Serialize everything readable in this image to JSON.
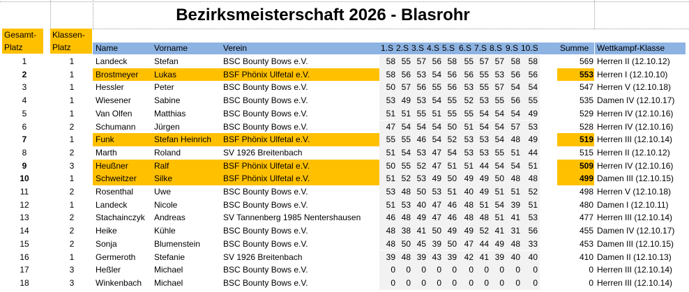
{
  "title": "Bezirksmeisterschaft 2026 - Blasrohr",
  "header": {
    "gesamt": [
      "Gesamt-",
      "Platz"
    ],
    "klassen": [
      "Klassen-",
      "Platz"
    ],
    "name": "Name",
    "vorname": "Vorname",
    "verein": "Verein",
    "shots": [
      "1.S",
      "2.S",
      "3.S",
      "4.S",
      "5.S",
      "6.S",
      "7.S",
      "8.S",
      "9.S",
      "10.S"
    ],
    "summe": "Summe",
    "klasse": "Wettkampf-Klasse"
  },
  "colors": {
    "highlight": "#ffc000",
    "header_blue": "#8db3e2"
  },
  "rows": [
    {
      "platz": "1",
      "kplatz": "1",
      "name": "Landeck",
      "vorname": "Stefan",
      "verein": "BSC Bounty Bows e.V.",
      "s": [
        "58",
        "55",
        "57",
        "56",
        "58",
        "55",
        "57",
        "57",
        "58",
        "58"
      ],
      "summe": "569",
      "klasse": "Herren II (12.10.12)",
      "hl": false
    },
    {
      "platz": "2",
      "kplatz": "1",
      "name": "Brostmeyer",
      "vorname": "Lukas",
      "verein": "BSF Phönix Ulfetal e.V.",
      "s": [
        "58",
        "56",
        "53",
        "54",
        "56",
        "56",
        "55",
        "53",
        "56",
        "56"
      ],
      "summe": "553",
      "klasse": "Herren I (12.10.10)",
      "hl": true
    },
    {
      "platz": "3",
      "kplatz": "1",
      "name": "Hessler",
      "vorname": "Peter",
      "verein": "BSC Bounty Bows e.V.",
      "s": [
        "50",
        "57",
        "56",
        "55",
        "56",
        "53",
        "55",
        "57",
        "54",
        "54"
      ],
      "summe": "547",
      "klasse": "Herren V (12.10.18)",
      "hl": false
    },
    {
      "platz": "4",
      "kplatz": "1",
      "name": "Wiesener",
      "vorname": "Sabine",
      "verein": "BSC Bounty Bows e.V.",
      "s": [
        "53",
        "49",
        "53",
        "54",
        "55",
        "52",
        "53",
        "55",
        "56",
        "55"
      ],
      "summe": "535",
      "klasse": "Damen IV (12.10.17)",
      "hl": false
    },
    {
      "platz": "5",
      "kplatz": "1",
      "name": "Van Olfen",
      "vorname": "Matthias",
      "verein": "BSC Bounty Bows e.V.",
      "s": [
        "51",
        "51",
        "55",
        "51",
        "55",
        "55",
        "54",
        "54",
        "54",
        "49"
      ],
      "summe": "529",
      "klasse": "Herren IV (12.10.16)",
      "hl": false
    },
    {
      "platz": "6",
      "kplatz": "2",
      "name": "Schumann",
      "vorname": "Jürgen",
      "verein": "BSC Bounty Bows e.V.",
      "s": [
        "47",
        "54",
        "54",
        "54",
        "50",
        "51",
        "54",
        "54",
        "57",
        "53"
      ],
      "summe": "528",
      "klasse": "Herren IV (12.10.16)",
      "hl": false
    },
    {
      "platz": "7",
      "kplatz": "1",
      "name": "Funk",
      "vorname": "Stefan Heinrich",
      "verein": "BSF Phönix Ulfetal e.V.",
      "s": [
        "55",
        "55",
        "46",
        "54",
        "52",
        "53",
        "53",
        "54",
        "48",
        "49"
      ],
      "summe": "519",
      "klasse": "Herren III (12.10.14)",
      "hl": true
    },
    {
      "platz": "8",
      "kplatz": "2",
      "name": "Marth",
      "vorname": "Roland",
      "verein": "SV 1926 Breitenbach",
      "s": [
        "51",
        "54",
        "53",
        "47",
        "54",
        "53",
        "53",
        "55",
        "51",
        "44"
      ],
      "summe": "515",
      "klasse": "Herren II (12.10.12)",
      "hl": false
    },
    {
      "platz": "9",
      "kplatz": "3",
      "name": "Heußner",
      "vorname": "Ralf",
      "verein": "BSF Phönix Ulfetal e.V.",
      "s": [
        "50",
        "55",
        "52",
        "47",
        "51",
        "51",
        "44",
        "54",
        "54",
        "51"
      ],
      "summe": "509",
      "klasse": "Herren IV (12.10.16)",
      "hl": true
    },
    {
      "platz": "10",
      "kplatz": "1",
      "name": "Schweitzer",
      "vorname": "Silke",
      "verein": "BSF Phönix Ulfetal e.V.",
      "s": [
        "51",
        "52",
        "53",
        "49",
        "50",
        "49",
        "49",
        "50",
        "48",
        "48"
      ],
      "summe": "499",
      "klasse": "Damen III (12.10.15)",
      "hl": true
    },
    {
      "platz": "11",
      "kplatz": "2",
      "name": "Rosenthal",
      "vorname": "Uwe",
      "verein": "BSC Bounty Bows e.V.",
      "s": [
        "53",
        "48",
        "50",
        "53",
        "51",
        "40",
        "49",
        "51",
        "51",
        "52"
      ],
      "summe": "498",
      "klasse": "Herren V (12.10.18)",
      "hl": false
    },
    {
      "platz": "12",
      "kplatz": "1",
      "name": "Landeck",
      "vorname": "Nicole",
      "verein": "BSC Bounty Bows e.V.",
      "s": [
        "51",
        "53",
        "40",
        "47",
        "46",
        "48",
        "51",
        "54",
        "39",
        "51"
      ],
      "summe": "480",
      "klasse": "Damen I (12.10.11)",
      "hl": false
    },
    {
      "platz": "13",
      "kplatz": "2",
      "name": "Stachainczyk",
      "vorname": "Andreas",
      "verein": "SV Tannenberg 1985 Nentershausen",
      "s": [
        "46",
        "48",
        "49",
        "47",
        "46",
        "48",
        "48",
        "51",
        "41",
        "53"
      ],
      "summe": "477",
      "klasse": "Herren III (12.10.14)",
      "hl": false
    },
    {
      "platz": "14",
      "kplatz": "2",
      "name": "Heike",
      "vorname": "Kühle",
      "verein": "BSC Bounty Bows e.V.",
      "s": [
        "48",
        "38",
        "41",
        "50",
        "49",
        "49",
        "52",
        "41",
        "31",
        "56"
      ],
      "summe": "455",
      "klasse": "Damen IV (12.10.17)",
      "hl": false
    },
    {
      "platz": "15",
      "kplatz": "2",
      "name": "Sonja",
      "vorname": "Blumenstein",
      "verein": "BSC Bounty Bows e.V.",
      "s": [
        "48",
        "50",
        "45",
        "39",
        "50",
        "47",
        "44",
        "49",
        "48",
        "33"
      ],
      "summe": "453",
      "klasse": "Damen III (12.10.15)",
      "hl": false
    },
    {
      "platz": "16",
      "kplatz": "1",
      "name": "Germeroth",
      "vorname": "Stefanie",
      "verein": "SV 1926 Breitenbach",
      "s": [
        "39",
        "48",
        "39",
        "43",
        "39",
        "42",
        "41",
        "39",
        "40",
        "40"
      ],
      "summe": "410",
      "klasse": "Damen II (12.10.13)",
      "hl": false
    },
    {
      "platz": "17",
      "kplatz": "3",
      "name": "Heßler",
      "vorname": "Michael",
      "verein": "BSC Bounty Bows e.V.",
      "s": [
        "0",
        "0",
        "0",
        "0",
        "0",
        "0",
        "0",
        "0",
        "0",
        "0"
      ],
      "summe": "0",
      "klasse": "Herren III (12.10.14)",
      "hl": false
    },
    {
      "platz": "18",
      "kplatz": "3",
      "name": "Winkenbach",
      "vorname": "Michael",
      "verein": "BSC Bounty Bows e.V.",
      "s": [
        "0",
        "0",
        "0",
        "0",
        "0",
        "0",
        "0",
        "0",
        "0",
        "0"
      ],
      "summe": "0",
      "klasse": "Herren III (12.10.14)",
      "hl": false
    }
  ]
}
